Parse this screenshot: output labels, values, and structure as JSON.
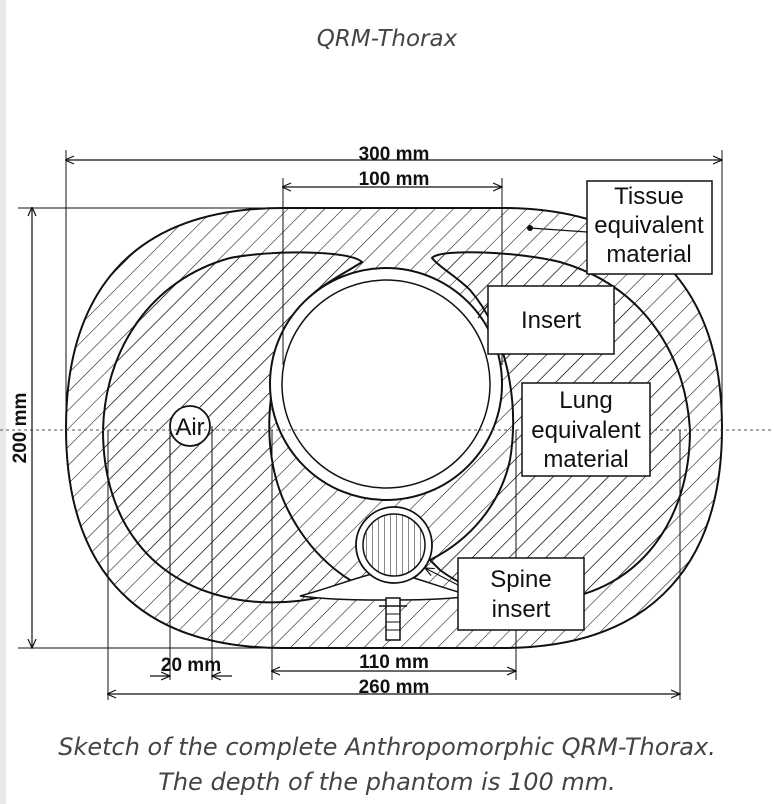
{
  "title": "QRM-Thorax",
  "dimensions": {
    "overall_width": "300 mm",
    "insert_width": "100 mm",
    "height": "200 mm",
    "air_width": "20 mm",
    "center_width": "110 mm",
    "inner_width": "260 mm"
  },
  "labels": {
    "tissue": [
      "Tissue",
      "equivalent",
      "material"
    ],
    "insert": "Insert",
    "lung": [
      "Lung",
      "equivalent",
      "material"
    ],
    "spine": [
      "Spine",
      "insert"
    ],
    "air": "Air"
  },
  "caption": {
    "line1": "Sketch of the complete Anthropomorphic QRM-Thorax.",
    "line2": "The depth of the phantom is 100 mm."
  }
}
